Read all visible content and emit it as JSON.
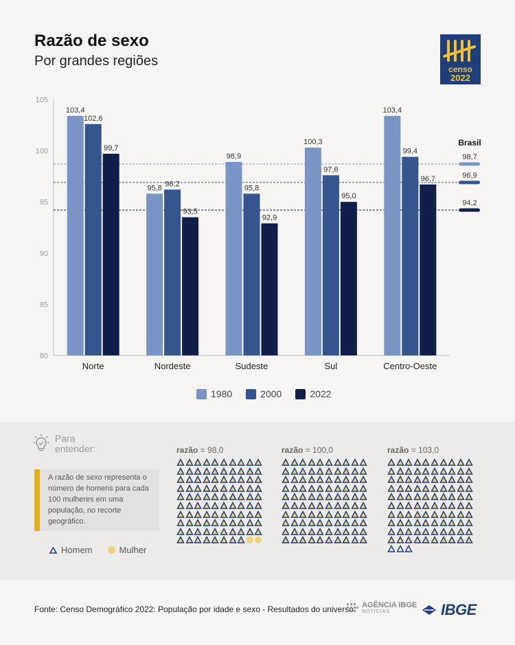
{
  "header": {
    "title": "Razão de sexo",
    "subtitle": "Por grandes regiões"
  },
  "logo": {
    "word": "censo",
    "year": "2022"
  },
  "colors": {
    "c1980": "#7a95c3",
    "c2000": "#35558f",
    "c2022": "#0f1f4a",
    "accent": "#e0b020",
    "mulher": "#f0d27a"
  },
  "chart_data": {
    "type": "bar",
    "categories": [
      "Norte",
      "Nordeste",
      "Sudeste",
      "Sul",
      "Centro-Oeste"
    ],
    "series": [
      {
        "name": "1980",
        "values": [
          103.4,
          95.8,
          98.9,
          100.3,
          103.4
        ]
      },
      {
        "name": "2000",
        "values": [
          102.6,
          96.2,
          95.8,
          97.6,
          99.4
        ]
      },
      {
        "name": "2022",
        "values": [
          99.7,
          93.5,
          92.9,
          95.0,
          96.7
        ]
      }
    ],
    "value_labels": [
      [
        "103,4",
        "95,8",
        "98,9",
        "100,3",
        "103,4"
      ],
      [
        "102,6",
        "96,2",
        "95,8",
        "97,6",
        "99,4"
      ],
      [
        "99,7",
        "93,5",
        "92,9",
        "95,0",
        "96,7"
      ]
    ],
    "ylim": [
      80,
      105
    ],
    "yticks": [
      80,
      85,
      90,
      95,
      100,
      105
    ],
    "reference": {
      "label": "Brasil",
      "values": [
        98.7,
        96.9,
        94.2
      ],
      "value_labels": [
        "98,7",
        "96,9",
        "94,2"
      ]
    },
    "legend_position": "bottom"
  },
  "explainer": {
    "heading_line1": "Para",
    "heading_line2": "entender:",
    "definition": "A razão de sexo representa o número de homens para cada 100 mulheres em uma população, no recorte geográfico.",
    "legend_homem": "Homem",
    "legend_mulher": "Mulher",
    "grids": [
      {
        "label": "razão",
        "eq": "= 98,0",
        "men": 98,
        "women": 100
      },
      {
        "label": "razão",
        "eq": "= 100,0",
        "men": 100,
        "women": 100
      },
      {
        "label": "razão",
        "eq": "= 103,0",
        "men": 103,
        "women": 100
      }
    ]
  },
  "footer": {
    "source": "Fonte: Censo Demográfico 2022: População por idade e sexo - Resultados do universo",
    "agencia_name": "AGÊNCIA IBGE",
    "agencia_sub": "NOTÍCIAS",
    "ibge": "IBGE"
  }
}
